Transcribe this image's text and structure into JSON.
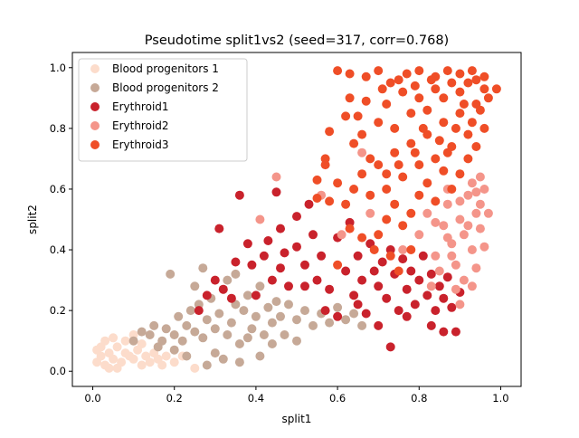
{
  "chart_data": {
    "type": "scatter",
    "title": "Pseudotime split1vs2 (seed=317, corr=0.768)",
    "xlabel": "split1",
    "ylabel": "split2",
    "xlim": [
      -0.05,
      1.05
    ],
    "ylim": [
      -0.05,
      1.05
    ],
    "xticks": [
      "0.0",
      "0.2",
      "0.4",
      "0.6",
      "0.8",
      "1.0"
    ],
    "xtick_values": [
      0.0,
      0.2,
      0.4,
      0.6,
      0.8,
      1.0
    ],
    "yticks": [
      "0.0",
      "0.2",
      "0.4",
      "0.6",
      "0.8",
      "1.0"
    ],
    "ytick_values": [
      0.0,
      0.2,
      0.4,
      0.6,
      0.8,
      1.0
    ],
    "grid": false,
    "legend_position": "top-left",
    "series": [
      {
        "name": "Blood progenitors 1",
        "color": "#fcdccb",
        "points": [
          [
            0.01,
            0.03
          ],
          [
            0.02,
            0.05
          ],
          [
            0.03,
            0.02
          ],
          [
            0.04,
            0.06
          ],
          [
            0.05,
            0.04
          ],
          [
            0.06,
            0.08
          ],
          [
            0.02,
            0.08
          ],
          [
            0.07,
            0.03
          ],
          [
            0.08,
            0.06
          ],
          [
            0.09,
            0.05
          ],
          [
            0.1,
            0.04
          ],
          [
            0.11,
            0.07
          ],
          [
            0.12,
            0.02
          ],
          [
            0.13,
            0.05
          ],
          [
            0.14,
            0.03
          ],
          [
            0.15,
            0.06
          ],
          [
            0.16,
            0.04
          ],
          [
            0.17,
            0.02
          ],
          [
            0.18,
            0.05
          ],
          [
            0.03,
            0.1
          ],
          [
            0.05,
            0.11
          ],
          [
            0.01,
            0.07
          ],
          [
            0.06,
            0.01
          ],
          [
            0.08,
            0.1
          ],
          [
            0.12,
            0.09
          ],
          [
            0.04,
            0.01
          ],
          [
            0.2,
            0.03
          ],
          [
            0.22,
            0.05
          ],
          [
            0.25,
            0.01
          ],
          [
            0.1,
            0.12
          ]
        ]
      },
      {
        "name": "Blood progenitors 2",
        "color": "#c6a997",
        "points": [
          [
            0.1,
            0.1
          ],
          [
            0.12,
            0.13
          ],
          [
            0.14,
            0.12
          ],
          [
            0.15,
            0.15
          ],
          [
            0.17,
            0.1
          ],
          [
            0.18,
            0.14
          ],
          [
            0.19,
            0.32
          ],
          [
            0.2,
            0.12
          ],
          [
            0.21,
            0.18
          ],
          [
            0.22,
            0.1
          ],
          [
            0.23,
            0.15
          ],
          [
            0.24,
            0.2
          ],
          [
            0.25,
            0.13
          ],
          [
            0.26,
            0.22
          ],
          [
            0.27,
            0.11
          ],
          [
            0.28,
            0.17
          ],
          [
            0.29,
            0.24
          ],
          [
            0.3,
            0.14
          ],
          [
            0.31,
            0.19
          ],
          [
            0.32,
            0.27
          ],
          [
            0.33,
            0.12
          ],
          [
            0.34,
            0.16
          ],
          [
            0.35,
            0.22
          ],
          [
            0.36,
            0.09
          ],
          [
            0.37,
            0.2
          ],
          [
            0.38,
            0.25
          ],
          [
            0.39,
            0.14
          ],
          [
            0.4,
            0.18
          ],
          [
            0.41,
            0.28
          ],
          [
            0.42,
            0.12
          ],
          [
            0.43,
            0.21
          ],
          [
            0.44,
            0.16
          ],
          [
            0.45,
            0.23
          ],
          [
            0.46,
            0.18
          ],
          [
            0.47,
            0.12
          ],
          [
            0.48,
            0.22
          ],
          [
            0.5,
            0.17
          ],
          [
            0.52,
            0.2
          ],
          [
            0.54,
            0.15
          ],
          [
            0.56,
            0.19
          ],
          [
            0.58,
            0.16
          ],
          [
            0.6,
            0.21
          ],
          [
            0.62,
            0.17
          ],
          [
            0.64,
            0.19
          ],
          [
            0.66,
            0.15
          ],
          [
            0.3,
            0.06
          ],
          [
            0.28,
            0.02
          ],
          [
            0.32,
            0.04
          ],
          [
            0.36,
            0.03
          ],
          [
            0.25,
            0.28
          ],
          [
            0.27,
            0.34
          ],
          [
            0.33,
            0.3
          ],
          [
            0.41,
            0.05
          ],
          [
            0.44,
            0.09
          ],
          [
            0.16,
            0.08
          ],
          [
            0.2,
            0.07
          ],
          [
            0.23,
            0.05
          ],
          [
            0.35,
            0.32
          ],
          [
            0.38,
            0.11
          ],
          [
            0.5,
            0.1
          ]
        ]
      },
      {
        "name": "Erythroid1",
        "color": "#c9222c",
        "points": [
          [
            0.3,
            0.3
          ],
          [
            0.32,
            0.27
          ],
          [
            0.35,
            0.36
          ],
          [
            0.38,
            0.42
          ],
          [
            0.4,
            0.25
          ],
          [
            0.42,
            0.38
          ],
          [
            0.44,
            0.3
          ],
          [
            0.46,
            0.34
          ],
          [
            0.48,
            0.28
          ],
          [
            0.5,
            0.41
          ],
          [
            0.52,
            0.35
          ],
          [
            0.54,
            0.45
          ],
          [
            0.55,
            0.3
          ],
          [
            0.56,
            0.38
          ],
          [
            0.58,
            0.27
          ],
          [
            0.6,
            0.44
          ],
          [
            0.62,
            0.33
          ],
          [
            0.63,
            0.49
          ],
          [
            0.64,
            0.25
          ],
          [
            0.65,
            0.38
          ],
          [
            0.66,
            0.3
          ],
          [
            0.68,
            0.42
          ],
          [
            0.7,
            0.28
          ],
          [
            0.71,
            0.36
          ],
          [
            0.72,
            0.24
          ],
          [
            0.73,
            0.4
          ],
          [
            0.74,
            0.32
          ],
          [
            0.75,
            0.2
          ],
          [
            0.76,
            0.37
          ],
          [
            0.77,
            0.27
          ],
          [
            0.78,
            0.33
          ],
          [
            0.79,
            0.22
          ],
          [
            0.8,
            0.3
          ],
          [
            0.81,
            0.38
          ],
          [
            0.82,
            0.25
          ],
          [
            0.83,
            0.32
          ],
          [
            0.84,
            0.2
          ],
          [
            0.85,
            0.28
          ],
          [
            0.86,
            0.24
          ],
          [
            0.87,
            0.31
          ],
          [
            0.88,
            0.21
          ],
          [
            0.9,
            0.26
          ],
          [
            0.67,
            0.19
          ],
          [
            0.7,
            0.15
          ],
          [
            0.73,
            0.08
          ],
          [
            0.6,
            0.18
          ],
          [
            0.57,
            0.2
          ],
          [
            0.43,
            0.43
          ],
          [
            0.46,
            0.47
          ],
          [
            0.5,
            0.51
          ],
          [
            0.53,
            0.55
          ],
          [
            0.45,
            0.59
          ],
          [
            0.36,
            0.58
          ],
          [
            0.31,
            0.47
          ],
          [
            0.34,
            0.24
          ],
          [
            0.26,
            0.2
          ],
          [
            0.28,
            0.25
          ],
          [
            0.39,
            0.35
          ],
          [
            0.47,
            0.39
          ],
          [
            0.52,
            0.28
          ],
          [
            0.65,
            0.22
          ],
          [
            0.69,
            0.33
          ],
          [
            0.77,
            0.18
          ],
          [
            0.83,
            0.15
          ],
          [
            0.86,
            0.13
          ],
          [
            0.89,
            0.13
          ]
        ]
      },
      {
        "name": "Erythroid2",
        "color": "#f4958a",
        "points": [
          [
            0.41,
            0.5
          ],
          [
            0.45,
            0.64
          ],
          [
            0.56,
            0.58
          ],
          [
            0.61,
            0.45
          ],
          [
            0.68,
            0.52
          ],
          [
            0.66,
            0.72
          ],
          [
            0.76,
            0.4
          ],
          [
            0.8,
            0.45
          ],
          [
            0.82,
            0.52
          ],
          [
            0.84,
            0.38
          ],
          [
            0.86,
            0.48
          ],
          [
            0.87,
            0.55
          ],
          [
            0.88,
            0.42
          ],
          [
            0.89,
            0.35
          ],
          [
            0.9,
            0.5
          ],
          [
            0.91,
            0.45
          ],
          [
            0.92,
            0.58
          ],
          [
            0.93,
            0.4
          ],
          [
            0.94,
            0.52
          ],
          [
            0.95,
            0.47
          ],
          [
            0.93,
            0.62
          ],
          [
            0.91,
            0.3
          ],
          [
            0.89,
            0.27
          ],
          [
            0.94,
            0.34
          ],
          [
            0.96,
            0.41
          ],
          [
            0.95,
            0.55
          ],
          [
            0.92,
            0.48
          ],
          [
            0.9,
            0.56
          ],
          [
            0.87,
            0.44
          ],
          [
            0.85,
            0.33
          ],
          [
            0.83,
            0.28
          ],
          [
            0.9,
            0.22
          ],
          [
            0.88,
            0.38
          ],
          [
            0.93,
            0.28
          ],
          [
            0.96,
            0.6
          ],
          [
            0.95,
            0.64
          ],
          [
            0.94,
            0.59
          ],
          [
            0.97,
            0.52
          ],
          [
            0.87,
            0.6
          ],
          [
            0.84,
            0.49
          ]
        ]
      },
      {
        "name": "Erythroid3",
        "color": "#ef4e27",
        "points": [
          [
            0.6,
            0.99
          ],
          [
            0.63,
            0.98
          ],
          [
            0.67,
            0.97
          ],
          [
            0.7,
            0.99
          ],
          [
            0.73,
            0.95
          ],
          [
            0.77,
            0.98
          ],
          [
            0.8,
            0.99
          ],
          [
            0.84,
            0.97
          ],
          [
            0.87,
            0.99
          ],
          [
            0.9,
            0.98
          ],
          [
            0.93,
            0.99
          ],
          [
            0.96,
            0.97
          ],
          [
            0.99,
            0.93
          ],
          [
            0.62,
            0.55
          ],
          [
            0.64,
            0.6
          ],
          [
            0.66,
            0.65
          ],
          [
            0.68,
            0.58
          ],
          [
            0.7,
            0.68
          ],
          [
            0.72,
            0.6
          ],
          [
            0.74,
            0.72
          ],
          [
            0.76,
            0.64
          ],
          [
            0.78,
            0.75
          ],
          [
            0.8,
            0.68
          ],
          [
            0.82,
            0.78
          ],
          [
            0.84,
            0.7
          ],
          [
            0.86,
            0.82
          ],
          [
            0.88,
            0.74
          ],
          [
            0.9,
            0.85
          ],
          [
            0.92,
            0.78
          ],
          [
            0.94,
            0.88
          ],
          [
            0.96,
            0.8
          ],
          [
            0.7,
            0.82
          ],
          [
            0.72,
            0.88
          ],
          [
            0.74,
            0.8
          ],
          [
            0.76,
            0.92
          ],
          [
            0.78,
            0.85
          ],
          [
            0.8,
            0.9
          ],
          [
            0.82,
            0.86
          ],
          [
            0.84,
            0.93
          ],
          [
            0.86,
            0.9
          ],
          [
            0.88,
            0.95
          ],
          [
            0.9,
            0.92
          ],
          [
            0.92,
            0.95
          ],
          [
            0.94,
            0.96
          ],
          [
            0.96,
            0.93
          ],
          [
            0.68,
            0.7
          ],
          [
            0.66,
            0.78
          ],
          [
            0.64,
            0.75
          ],
          [
            0.62,
            0.84
          ],
          [
            0.58,
            0.79
          ],
          [
            0.55,
            0.63
          ],
          [
            0.57,
            0.7
          ],
          [
            0.6,
            0.62
          ],
          [
            0.7,
            0.45
          ],
          [
            0.72,
            0.5
          ],
          [
            0.74,
            0.55
          ],
          [
            0.76,
            0.48
          ],
          [
            0.78,
            0.52
          ],
          [
            0.8,
            0.58
          ],
          [
            0.82,
            0.62
          ],
          [
            0.84,
            0.56
          ],
          [
            0.86,
            0.66
          ],
          [
            0.88,
            0.6
          ],
          [
            0.9,
            0.65
          ],
          [
            0.92,
            0.7
          ],
          [
            0.94,
            0.74
          ],
          [
            0.73,
            0.38
          ],
          [
            0.75,
            0.33
          ],
          [
            0.78,
            0.4
          ],
          [
            0.69,
            0.4
          ],
          [
            0.66,
            0.44
          ],
          [
            0.63,
            0.47
          ],
          [
            0.6,
            0.35
          ],
          [
            0.57,
            0.68
          ],
          [
            0.55,
            0.57
          ],
          [
            0.58,
            0.56
          ],
          [
            0.72,
            0.65
          ],
          [
            0.75,
            0.68
          ],
          [
            0.79,
            0.72
          ],
          [
            0.81,
            0.8
          ],
          [
            0.85,
            0.76
          ],
          [
            0.87,
            0.72
          ],
          [
            0.89,
            0.8
          ],
          [
            0.91,
            0.88
          ],
          [
            0.93,
            0.82
          ],
          [
            0.95,
            0.86
          ],
          [
            0.97,
            0.9
          ],
          [
            0.83,
            0.96
          ],
          [
            0.79,
            0.94
          ],
          [
            0.75,
            0.96
          ],
          [
            0.71,
            0.93
          ],
          [
            0.67,
            0.89
          ],
          [
            0.65,
            0.84
          ],
          [
            0.63,
            0.9
          ]
        ]
      }
    ]
  }
}
